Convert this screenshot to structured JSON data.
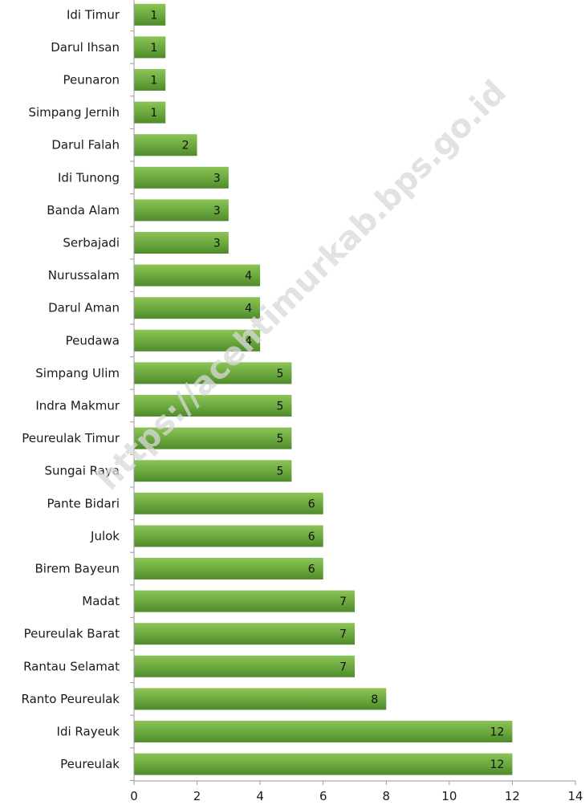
{
  "chart_data": {
    "type": "bar",
    "orientation": "horizontal",
    "categories": [
      "Idi Timur",
      "Darul Ihsan",
      "Peunaron",
      "Simpang Jernih",
      "Darul Falah",
      "Idi Tunong",
      "Banda Alam",
      "Serbajadi",
      "Nurussalam",
      "Darul Aman",
      "Peudawa",
      "Simpang Ulim",
      "Indra Makmur",
      "Peureulak Timur",
      "Sungai Raya",
      "Pante Bidari",
      "Julok",
      "Birem Bayeun",
      "Madat",
      "Peureulak Barat",
      "Rantau Selamat",
      "Ranto Peureulak",
      "Idi Rayeuk",
      "Peureulak"
    ],
    "values": [
      1,
      1,
      1,
      1,
      2,
      3,
      3,
      3,
      4,
      4,
      4,
      5,
      5,
      5,
      5,
      6,
      6,
      6,
      7,
      7,
      7,
      8,
      12,
      12
    ],
    "value_labels": [
      "1",
      "1",
      "1",
      "1",
      "2",
      "3",
      "3",
      "3",
      "4",
      "4",
      "4",
      "5",
      "5",
      "5",
      "5",
      "6",
      "6",
      "6",
      "7",
      "7",
      "7",
      "8",
      "12",
      "12"
    ],
    "title": "",
    "xlabel": "",
    "ylabel": "",
    "xlim": [
      0,
      14
    ],
    "x_ticks": [
      0,
      2,
      4,
      6,
      8,
      10,
      12,
      14
    ],
    "x_tick_labels": [
      "0",
      "2",
      "4",
      "6",
      "8",
      "10",
      "12",
      "14"
    ],
    "grid": false,
    "legend": "none",
    "bar_color": "#6aa73e",
    "bar_color_light": "#8cc456",
    "bar_color_dark": "#4e8a2a"
  },
  "watermark": {
    "text": "https://acehtimurkab.bps.go.id"
  }
}
